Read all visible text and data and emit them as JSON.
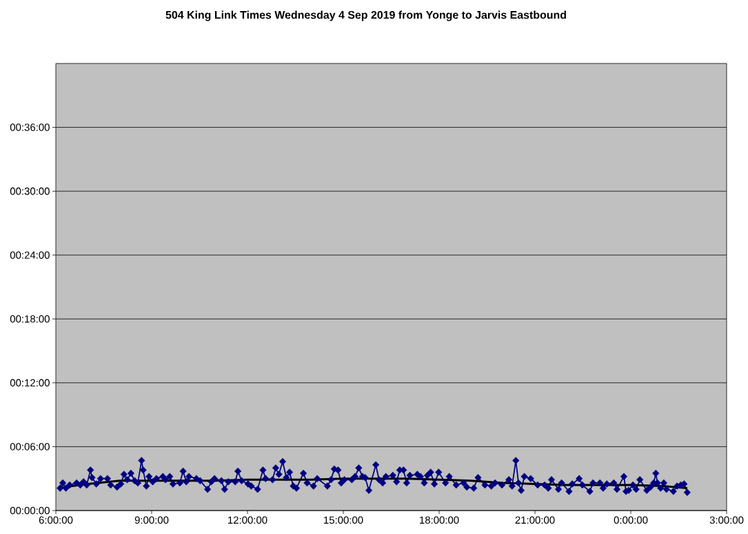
{
  "chart_data": {
    "type": "line",
    "title": "504 King Link Times Wednesday 4 Sep 2019 from Yonge to Jarvis Eastbound",
    "xlim": [
      "2019-09-04T06:00",
      "2019-09-05T03:00"
    ],
    "xticks": [
      {
        "value": "2019-09-04T06:00",
        "label": "6:00:00"
      },
      {
        "value": "2019-09-04T09:00",
        "label": "9:00:00"
      },
      {
        "value": "2019-09-04T12:00",
        "label": "12:00:00"
      },
      {
        "value": "2019-09-04T15:00",
        "label": "15:00:00"
      },
      {
        "value": "2019-09-04T18:00",
        "label": "18:00:00"
      },
      {
        "value": "2019-09-04T21:00",
        "label": "21:00:00"
      },
      {
        "value": "2019-09-05T00:00",
        "label": "0:00:00"
      },
      {
        "value": "2019-09-05T03:00",
        "label": "3:00:00"
      }
    ],
    "ylim": [
      0,
      42
    ],
    "yticks": [
      {
        "value": 0,
        "label": "00:00:00"
      },
      {
        "value": 6,
        "label": "00:06:00"
      },
      {
        "value": 12,
        "label": "00:12:00"
      },
      {
        "value": 18,
        "label": "00:18:00"
      },
      {
        "value": 24,
        "label": "00:24:00"
      },
      {
        "value": 30,
        "label": "00:30:00"
      },
      {
        "value": 36,
        "label": "00:36:00"
      }
    ],
    "grid": "y",
    "marker": "diamond",
    "line_style": "solid",
    "series": [
      {
        "color": "#000080",
        "x": [
          "2019-09-04T06:08",
          "2019-09-04T06:13",
          "2019-09-04T06:19",
          "2019-09-04T06:26",
          "2019-09-04T06:39",
          "2019-09-04T06:46",
          "2019-09-04T06:52",
          "2019-09-04T06:58",
          "2019-09-04T07:05",
          "2019-09-04T07:08",
          "2019-09-04T07:16",
          "2019-09-04T07:24",
          "2019-09-04T07:37",
          "2019-09-04T07:43",
          "2019-09-04T07:55",
          "2019-09-04T08:02",
          "2019-09-04T08:08",
          "2019-09-04T08:14",
          "2019-09-04T08:21",
          "2019-09-04T08:28",
          "2019-09-04T08:34",
          "2019-09-04T08:41",
          "2019-09-04T08:44",
          "2019-09-04T08:50",
          "2019-09-04T08:55",
          "2019-09-04T09:02",
          "2019-09-04T09:09",
          "2019-09-04T09:21",
          "2019-09-04T09:26",
          "2019-09-04T09:34",
          "2019-09-04T09:40",
          "2019-09-04T09:53",
          "2019-09-04T09:59",
          "2019-09-04T10:05",
          "2019-09-04T10:10",
          "2019-09-04T10:24",
          "2019-09-04T10:31",
          "2019-09-04T10:45",
          "2019-09-04T10:52",
          "2019-09-04T10:58",
          "2019-09-04T11:11",
          "2019-09-04T11:17",
          "2019-09-04T11:24",
          "2019-09-04T11:37",
          "2019-09-04T11:42",
          "2019-09-04T11:49",
          "2019-09-04T12:01",
          "2019-09-04T12:07",
          "2019-09-04T12:19",
          "2019-09-04T12:29",
          "2019-09-04T12:34",
          "2019-09-04T12:47",
          "2019-09-04T12:53",
          "2019-09-04T12:59",
          "2019-09-04T13:06",
          "2019-09-04T13:13",
          "2019-09-04T13:19",
          "2019-09-04T13:26",
          "2019-09-04T13:32",
          "2019-09-04T13:45",
          "2019-09-04T13:52",
          "2019-09-04T14:04",
          "2019-09-04T14:11",
          "2019-09-04T14:30",
          "2019-09-04T14:37",
          "2019-09-04T14:43",
          "2019-09-04T14:50",
          "2019-09-04T14:56",
          "2019-09-04T15:02",
          "2019-09-04T15:16",
          "2019-09-04T15:22",
          "2019-09-04T15:29",
          "2019-09-04T15:36",
          "2019-09-04T15:41",
          "2019-09-04T15:48",
          "2019-09-04T16:01",
          "2019-09-04T16:07",
          "2019-09-04T16:14",
          "2019-09-04T16:20",
          "2019-09-04T16:33",
          "2019-09-04T16:40",
          "2019-09-04T16:46",
          "2019-09-04T16:53",
          "2019-09-04T16:59",
          "2019-09-04T17:05",
          "2019-09-04T17:19",
          "2019-09-04T17:25",
          "2019-09-04T17:32",
          "2019-09-04T17:38",
          "2019-09-04T17:44",
          "2019-09-04T17:51",
          "2019-09-04T17:59",
          "2019-09-04T18:12",
          "2019-09-04T18:19",
          "2019-09-04T18:32",
          "2019-09-04T18:46",
          "2019-09-04T18:52",
          "2019-09-04T19:05",
          "2019-09-04T19:13",
          "2019-09-04T19:26",
          "2019-09-04T19:38",
          "2019-09-04T19:45",
          "2019-09-04T19:58",
          "2019-09-04T20:11",
          "2019-09-04T20:17",
          "2019-09-04T20:24",
          "2019-09-04T20:29",
          "2019-09-04T20:34",
          "2019-09-04T20:40",
          "2019-09-04T20:52",
          "2019-09-04T21:05",
          "2019-09-04T21:18",
          "2019-09-04T21:25",
          "2019-09-04T21:31",
          "2019-09-04T21:44",
          "2019-09-04T21:50",
          "2019-09-04T22:04",
          "2019-09-04T22:10",
          "2019-09-04T22:23",
          "2019-09-04T22:29",
          "2019-09-04T22:43",
          "2019-09-04T22:49",
          "2019-09-04T23:02",
          "2019-09-04T23:08",
          "2019-09-04T23:15",
          "2019-09-04T23:28",
          "2019-09-04T23:34",
          "2019-09-04T23:47",
          "2019-09-04T23:51",
          "2019-09-04T23:56",
          "2019-09-05T00:04",
          "2019-09-05T00:10",
          "2019-09-05T00:17",
          "2019-09-05T00:30",
          "2019-09-05T00:37",
          "2019-09-05T00:43",
          "2019-09-05T00:47",
          "2019-09-05T00:50",
          "2019-09-05T00:56",
          "2019-09-05T01:02",
          "2019-09-05T01:07",
          "2019-09-05T01:20",
          "2019-09-05T01:27",
          "2019-09-05T01:34",
          "2019-09-05T01:40",
          "2019-09-05T01:46"
        ],
        "values": [
          2.1,
          2.6,
          2.1,
          2.4,
          2.6,
          2.4,
          2.7,
          2.4,
          3.8,
          3.1,
          2.5,
          3.0,
          3.0,
          2.4,
          2.2,
          2.5,
          3.4,
          2.9,
          3.5,
          2.8,
          2.6,
          4.7,
          3.8,
          2.3,
          3.2,
          2.7,
          3.0,
          3.2,
          2.9,
          3.2,
          2.5,
          2.6,
          3.7,
          2.7,
          3.2,
          3.0,
          2.8,
          2.0,
          2.7,
          3.0,
          2.8,
          2.0,
          2.7,
          2.7,
          3.7,
          2.8,
          2.5,
          2.3,
          2.0,
          3.8,
          3.0,
          2.9,
          4.0,
          3.4,
          4.6,
          3.1,
          3.6,
          2.3,
          2.1,
          3.5,
          2.6,
          2.3,
          3.0,
          2.3,
          2.9,
          3.9,
          3.8,
          2.6,
          2.9,
          2.9,
          3.2,
          4.0,
          3.2,
          3.1,
          1.9,
          4.3,
          2.9,
          2.6,
          3.2,
          3.3,
          2.7,
          3.8,
          3.8,
          2.6,
          3.3,
          3.4,
          3.2,
          2.6,
          3.3,
          3.6,
          2.5,
          3.6,
          2.6,
          3.2,
          2.4,
          2.6,
          2.2,
          2.1,
          3.1,
          2.4,
          2.3,
          2.6,
          2.4,
          2.9,
          2.3,
          4.7,
          2.6,
          1.9,
          3.2,
          3.0,
          2.4,
          2.4,
          2.1,
          2.9,
          2.0,
          2.6,
          1.8,
          2.5,
          3.0,
          2.4,
          1.8,
          2.6,
          2.6,
          2.1,
          2.5,
          2.6,
          2.0,
          3.2,
          1.8,
          1.9,
          2.4,
          2.0,
          2.9,
          1.9,
          2.2,
          2.6,
          3.5,
          2.6,
          2.1,
          2.6,
          2.0,
          1.8,
          2.3,
          2.4,
          2.5,
          1.7
        ]
      },
      {
        "type": "line",
        "color": "#000000",
        "marker": "none",
        "x": [
          "2019-09-04T06:06",
          "2019-09-04T06:30",
          "2019-09-04T07:00",
          "2019-09-04T08:00",
          "2019-09-04T09:00",
          "2019-09-04T10:00",
          "2019-09-04T11:00",
          "2019-09-04T12:00",
          "2019-09-04T13:00",
          "2019-09-04T14:00",
          "2019-09-04T15:00",
          "2019-09-04T16:00",
          "2019-09-04T17:00",
          "2019-09-04T18:00",
          "2019-09-04T19:00",
          "2019-09-04T20:00",
          "2019-09-04T21:00",
          "2019-09-04T22:00",
          "2019-09-04T23:00",
          "2019-09-05T00:00",
          "2019-09-05T01:00",
          "2019-09-05T01:46"
        ],
        "values": [
          2.1,
          2.3,
          2.5,
          2.8,
          2.8,
          2.8,
          2.8,
          2.9,
          2.9,
          2.9,
          3.0,
          3.0,
          3.0,
          2.9,
          2.8,
          2.6,
          2.5,
          2.4,
          2.4,
          2.4,
          2.3,
          2.1
        ]
      }
    ]
  }
}
